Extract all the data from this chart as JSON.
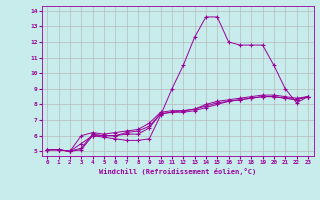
{
  "title": "",
  "xlabel": "Windchill (Refroidissement éolien,°C)",
  "ylabel": "",
  "bg_color": "#c8ecec",
  "line_color": "#990099",
  "grid_color": "#b0b0b0",
  "xlim": [
    -0.5,
    23.5
  ],
  "ylim": [
    4.7,
    14.3
  ],
  "xticks": [
    0,
    1,
    2,
    3,
    4,
    5,
    6,
    7,
    8,
    9,
    10,
    11,
    12,
    13,
    14,
    15,
    16,
    17,
    18,
    19,
    20,
    21,
    22,
    23
  ],
  "yticks": [
    5,
    6,
    7,
    8,
    9,
    10,
    11,
    12,
    13,
    14
  ],
  "series": [
    [
      5.1,
      5.1,
      5.0,
      5.1,
      6.0,
      5.9,
      5.8,
      5.7,
      5.7,
      5.8,
      7.3,
      9.0,
      10.5,
      12.3,
      13.6,
      13.6,
      12.0,
      11.8,
      11.8,
      11.8,
      10.5,
      9.0,
      8.1,
      8.5
    ],
    [
      5.1,
      5.1,
      5.0,
      5.2,
      6.1,
      6.0,
      6.0,
      6.1,
      6.1,
      6.5,
      7.4,
      7.5,
      7.5,
      7.6,
      7.8,
      8.0,
      8.2,
      8.3,
      8.4,
      8.5,
      8.5,
      8.4,
      8.3,
      8.5
    ],
    [
      5.1,
      5.1,
      5.0,
      6.0,
      6.2,
      6.1,
      6.2,
      6.3,
      6.4,
      6.8,
      7.5,
      7.6,
      7.6,
      7.7,
      8.0,
      8.2,
      8.3,
      8.4,
      8.5,
      8.6,
      8.6,
      8.5,
      8.4,
      8.5
    ],
    [
      5.1,
      5.1,
      5.0,
      5.5,
      6.0,
      6.0,
      6.0,
      6.2,
      6.3,
      6.6,
      7.4,
      7.5,
      7.6,
      7.7,
      7.9,
      8.1,
      8.2,
      8.3,
      8.4,
      8.5,
      8.5,
      8.4,
      8.3,
      8.5
    ]
  ]
}
